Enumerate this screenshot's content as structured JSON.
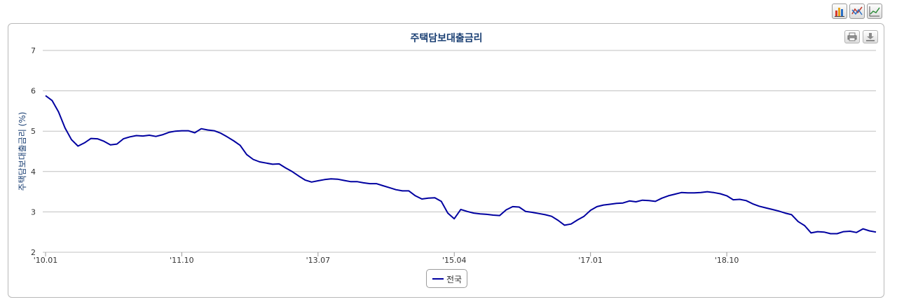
{
  "toolbar": {
    "buttons": [
      {
        "icon": "bar-chart-icon"
      },
      {
        "icon": "line-chart-icon"
      },
      {
        "icon": "trend-chart-icon"
      }
    ]
  },
  "chart_actions": [
    {
      "icon": "print-icon"
    },
    {
      "icon": "download-icon"
    }
  ],
  "colors": {
    "series": "#0000a0",
    "title": "#1a3f73",
    "grid": "#c0c0c0",
    "axis_label": "#1a3f73"
  },
  "chart_data": {
    "type": "line",
    "title": "주택담보대출금리",
    "xlabel": "",
    "ylabel": "주택담보대출금리 (%)",
    "ylim": [
      2,
      7
    ],
    "y_ticks": [
      "2",
      "3",
      "4",
      "5",
      "6",
      "7"
    ],
    "x_tick_labels": [
      "'10.01",
      "'11.10",
      "'13.07",
      "'15.04",
      "'17.01",
      "'18.10"
    ],
    "grid": true,
    "legend_position": "bottom-center",
    "series": [
      {
        "name": "전국",
        "values": [
          5.88,
          5.76,
          5.48,
          5.08,
          4.79,
          4.63,
          4.71,
          4.82,
          4.81,
          4.75,
          4.66,
          4.68,
          4.81,
          4.86,
          4.89,
          4.88,
          4.9,
          4.87,
          4.91,
          4.97,
          5.0,
          5.01,
          5.01,
          4.96,
          5.06,
          5.03,
          5.01,
          4.95,
          4.86,
          4.76,
          4.65,
          4.42,
          4.3,
          4.24,
          4.21,
          4.18,
          4.19,
          4.09,
          4.0,
          3.89,
          3.79,
          3.74,
          3.77,
          3.8,
          3.82,
          3.81,
          3.78,
          3.75,
          3.75,
          3.72,
          3.7,
          3.7,
          3.65,
          3.6,
          3.55,
          3.52,
          3.52,
          3.4,
          3.32,
          3.34,
          3.35,
          3.26,
          2.97,
          2.83,
          3.06,
          3.01,
          2.97,
          2.95,
          2.94,
          2.92,
          2.91,
          3.05,
          3.13,
          3.12,
          3.01,
          2.99,
          2.96,
          2.93,
          2.89,
          2.79,
          2.67,
          2.7,
          2.8,
          2.89,
          3.04,
          3.13,
          3.17,
          3.19,
          3.21,
          3.22,
          3.27,
          3.25,
          3.29,
          3.28,
          3.26,
          3.34,
          3.4,
          3.44,
          3.48,
          3.47,
          3.47,
          3.48,
          3.5,
          3.48,
          3.45,
          3.4,
          3.3,
          3.31,
          3.28,
          3.2,
          3.14,
          3.1,
          3.06,
          3.02,
          2.97,
          2.93,
          2.76,
          2.66,
          2.48,
          2.51,
          2.5,
          2.46,
          2.46,
          2.51,
          2.52,
          2.49,
          2.58,
          2.53,
          2.5
        ]
      }
    ]
  }
}
